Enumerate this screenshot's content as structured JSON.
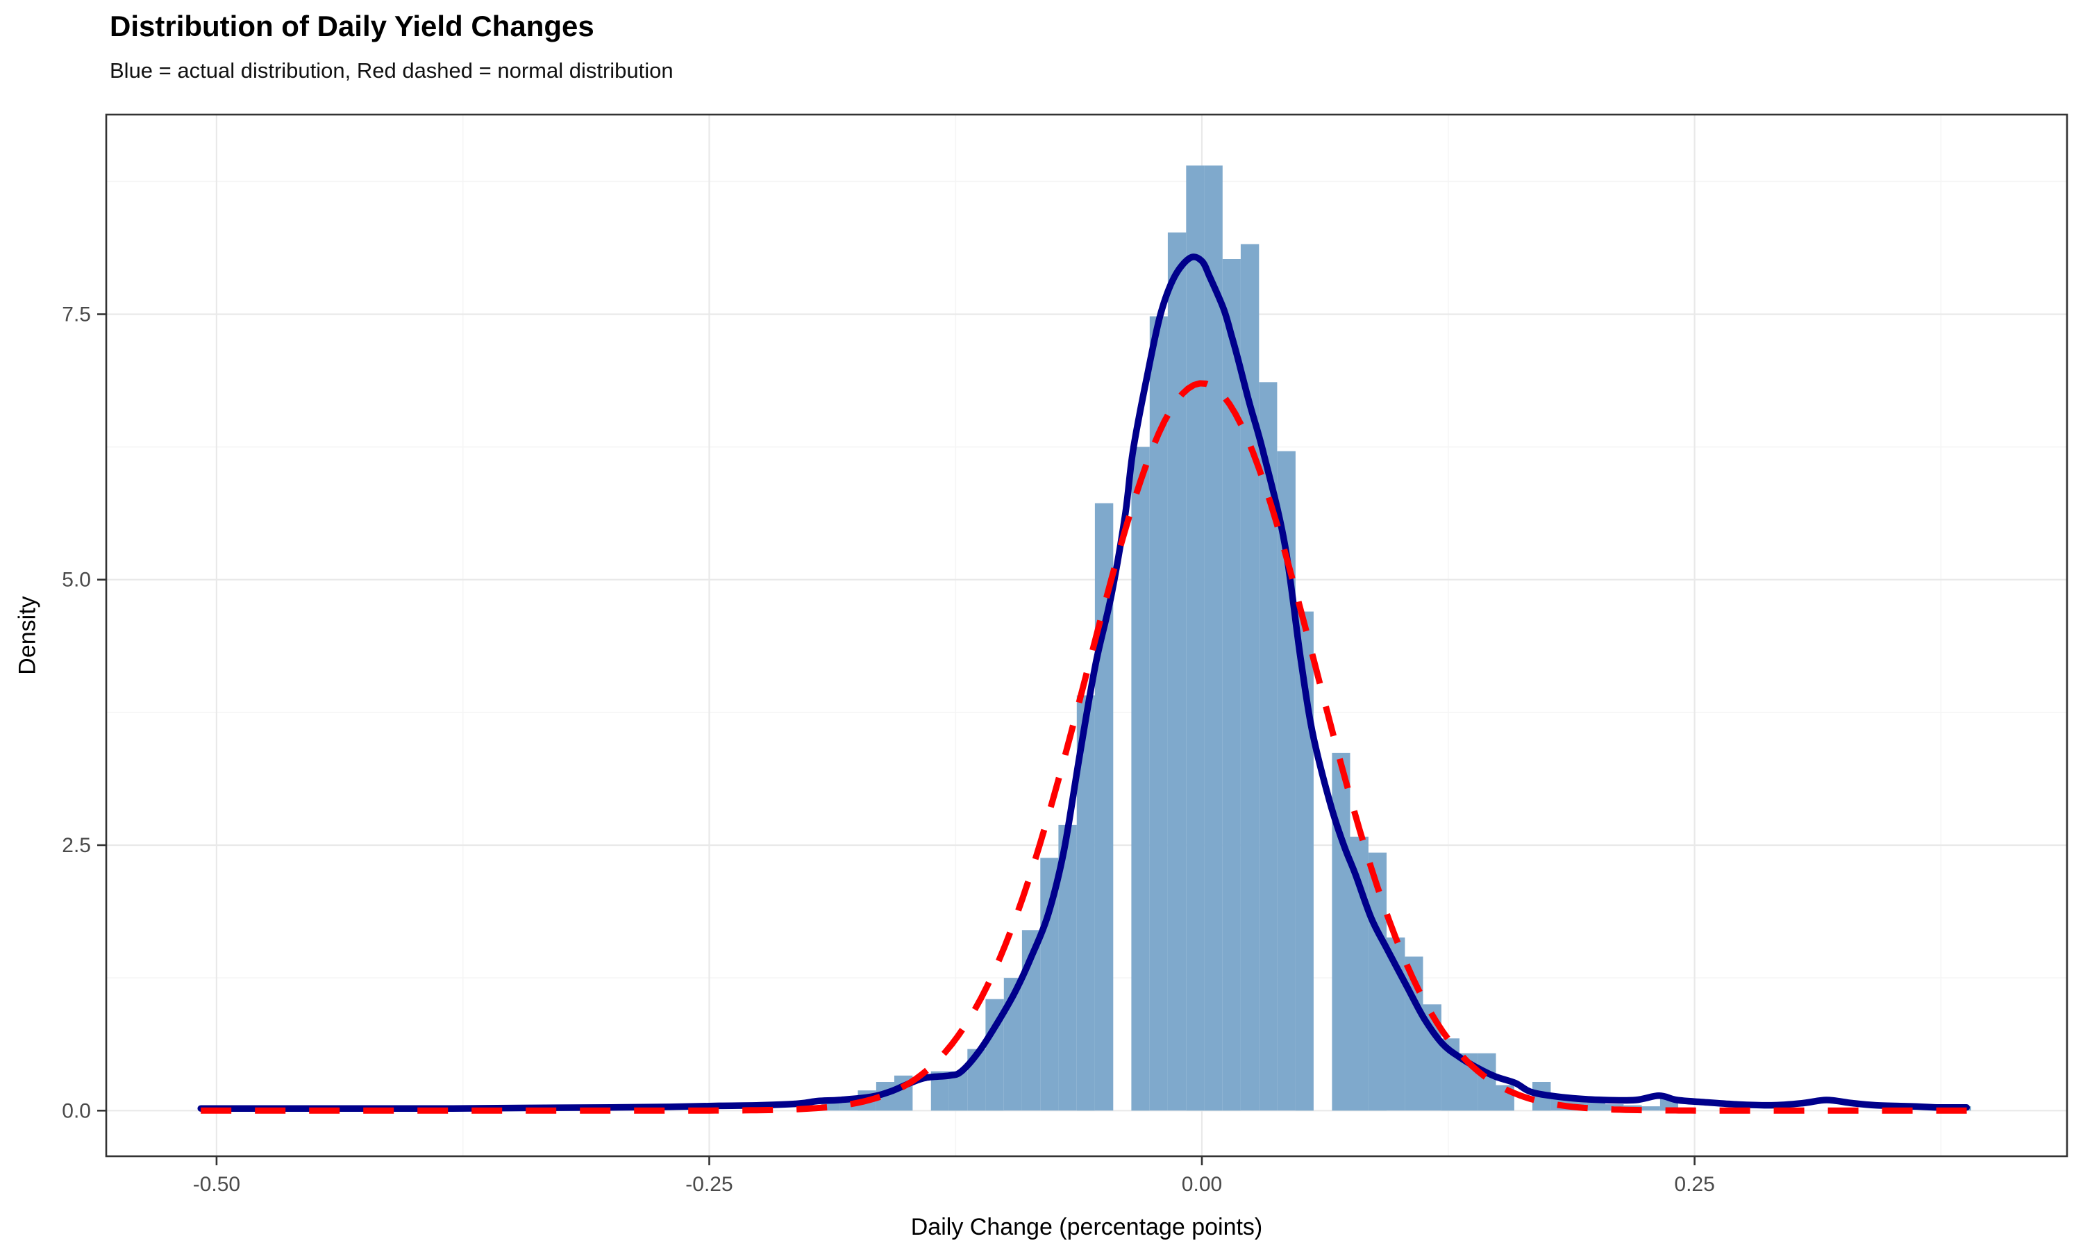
{
  "header": {
    "title": "Distribution of Daily Yield Changes",
    "subtitle": "Blue = actual distribution, Red dashed = normal distribution"
  },
  "chart_data": {
    "type": "bar",
    "subtype": "histogram-with-density-overlays",
    "title": "Distribution of Daily Yield Changes",
    "subtitle": "Blue = actual distribution, Red dashed = normal distribution",
    "xlabel": "Daily Change (percentage points)",
    "ylabel": "Density",
    "series_notes": [
      {
        "name": "actual distribution (kernel density)",
        "style": "solid",
        "color": "#00008B"
      },
      {
        "name": "normal distribution",
        "style": "dashed",
        "color": "#FF0000"
      }
    ],
    "axes": {
      "x_domain": [
        -0.556,
        0.439
      ],
      "y_domain": [
        -0.43,
        9.38
      ],
      "x_ticks": [
        -0.5,
        -0.25,
        0.0,
        0.25
      ],
      "x_tick_labels": [
        "-0.50",
        "-0.25",
        "0.00",
        "0.25"
      ],
      "x_minor_ticks": [
        -0.375,
        -0.125,
        0.125,
        0.375
      ],
      "y_ticks": [
        0.0,
        2.5,
        5.0,
        7.5
      ],
      "y_tick_labels": [
        "0.0",
        "2.5",
        "5.0",
        "7.5"
      ],
      "y_minor_ticks": [
        1.25,
        3.75,
        6.25,
        8.75
      ],
      "grid": true,
      "legend": "none"
    },
    "colors": {
      "bar": "#7FA9CC",
      "density_line": "#00008B",
      "normal_line": "#FF0000",
      "grid_major": "#E9E9E9",
      "grid_minor": "#F5F5F5",
      "panel_border": "#333333",
      "tick_mark": "#333333",
      "tick_text": "#4A4A4A"
    },
    "bars_format": "[x_left, x_right, density_height]",
    "bars": [
      [
        -0.5079,
        -0.4986,
        0.04
      ],
      [
        -0.1931,
        -0.1838,
        0.11
      ],
      [
        -0.1838,
        -0.1746,
        0.11
      ],
      [
        -0.1746,
        -0.1653,
        0.19
      ],
      [
        -0.1653,
        -0.1561,
        0.27
      ],
      [
        -0.1561,
        -0.1468,
        0.33
      ],
      [
        -0.1375,
        -0.1283,
        0.37
      ],
      [
        -0.1283,
        -0.119,
        0.37
      ],
      [
        -0.119,
        -0.1098,
        0.58
      ],
      [
        -0.1098,
        -0.1005,
        1.05
      ],
      [
        -0.1005,
        -0.0913,
        1.25
      ],
      [
        -0.0913,
        -0.082,
        1.7
      ],
      [
        -0.082,
        -0.0728,
        2.38
      ],
      [
        -0.0728,
        -0.0635,
        2.69
      ],
      [
        -0.0635,
        -0.0543,
        3.91
      ],
      [
        -0.0543,
        -0.045,
        5.72
      ],
      [
        -0.0358,
        -0.0265,
        6.25
      ],
      [
        -0.0265,
        -0.0173,
        7.48
      ],
      [
        -0.0173,
        -0.008,
        8.27
      ],
      [
        -0.008,
        0.0012,
        8.9
      ],
      [
        0.0012,
        0.0105,
        8.9
      ],
      [
        0.0105,
        0.0197,
        8.02
      ],
      [
        0.0197,
        0.029,
        8.16
      ],
      [
        0.029,
        0.0382,
        6.86
      ],
      [
        0.0382,
        0.0475,
        6.21
      ],
      [
        0.0475,
        0.0567,
        4.7
      ],
      [
        0.066,
        0.0752,
        3.37
      ],
      [
        0.0752,
        0.0845,
        2.58
      ],
      [
        0.0845,
        0.0937,
        2.43
      ],
      [
        0.0937,
        0.103,
        1.63
      ],
      [
        0.103,
        0.1122,
        1.45
      ],
      [
        0.1122,
        0.1215,
        1.0
      ],
      [
        0.1215,
        0.1307,
        0.68
      ],
      [
        0.1307,
        0.14,
        0.54
      ],
      [
        0.14,
        0.1492,
        0.54
      ],
      [
        0.1492,
        0.1585,
        0.24
      ],
      [
        0.1677,
        0.177,
        0.27
      ],
      [
        0.177,
        0.1862,
        0.12
      ],
      [
        0.1862,
        0.1955,
        0.12
      ],
      [
        0.1955,
        0.2047,
        0.09
      ],
      [
        0.2047,
        0.214,
        0.06
      ],
      [
        0.214,
        0.2232,
        0.05
      ],
      [
        0.2232,
        0.2325,
        0.04
      ],
      [
        0.2325,
        0.2417,
        0.13
      ],
      [
        0.3811,
        0.3903,
        0.04
      ]
    ],
    "density_curve": [
      [
        -0.508,
        0.02
      ],
      [
        -0.46,
        0.02
      ],
      [
        -0.42,
        0.02
      ],
      [
        -0.38,
        0.02
      ],
      [
        -0.34,
        0.025
      ],
      [
        -0.3,
        0.03
      ],
      [
        -0.27,
        0.035
      ],
      [
        -0.245,
        0.045
      ],
      [
        -0.225,
        0.05
      ],
      [
        -0.205,
        0.065
      ],
      [
        -0.195,
        0.09
      ],
      [
        -0.184,
        0.1
      ],
      [
        -0.168,
        0.13
      ],
      [
        -0.158,
        0.18
      ],
      [
        -0.148,
        0.26
      ],
      [
        -0.14,
        0.31
      ],
      [
        -0.128,
        0.33
      ],
      [
        -0.122,
        0.37
      ],
      [
        -0.113,
        0.56
      ],
      [
        -0.104,
        0.82
      ],
      [
        -0.095,
        1.11
      ],
      [
        -0.087,
        1.43
      ],
      [
        -0.078,
        1.85
      ],
      [
        -0.07,
        2.45
      ],
      [
        -0.062,
        3.35
      ],
      [
        -0.054,
        4.2
      ],
      [
        -0.046,
        4.85
      ],
      [
        -0.039,
        5.6
      ],
      [
        -0.035,
        6.21
      ],
      [
        -0.028,
        6.9
      ],
      [
        -0.021,
        7.5
      ],
      [
        -0.014,
        7.85
      ],
      [
        -0.006,
        8.03
      ],
      [
        0.0,
        8.0
      ],
      [
        0.004,
        7.85
      ],
      [
        0.011,
        7.55
      ],
      [
        0.015,
        7.3
      ],
      [
        0.018,
        7.1
      ],
      [
        0.024,
        6.67
      ],
      [
        0.031,
        6.21
      ],
      [
        0.042,
        5.34
      ],
      [
        0.05,
        4.27
      ],
      [
        0.056,
        3.57
      ],
      [
        0.065,
        2.9
      ],
      [
        0.072,
        2.5
      ],
      [
        0.078,
        2.22
      ],
      [
        0.086,
        1.81
      ],
      [
        0.094,
        1.52
      ],
      [
        0.104,
        1.17
      ],
      [
        0.113,
        0.86
      ],
      [
        0.122,
        0.63
      ],
      [
        0.131,
        0.5
      ],
      [
        0.14,
        0.4
      ],
      [
        0.149,
        0.32
      ],
      [
        0.159,
        0.26
      ],
      [
        0.168,
        0.17
      ],
      [
        0.186,
        0.12
      ],
      [
        0.204,
        0.1
      ],
      [
        0.22,
        0.1
      ],
      [
        0.232,
        0.14
      ],
      [
        0.241,
        0.1
      ],
      [
        0.254,
        0.08
      ],
      [
        0.27,
        0.06
      ],
      [
        0.289,
        0.05
      ],
      [
        0.305,
        0.07
      ],
      [
        0.317,
        0.1
      ],
      [
        0.33,
        0.07
      ],
      [
        0.342,
        0.05
      ],
      [
        0.36,
        0.04
      ],
      [
        0.373,
        0.03
      ],
      [
        0.388,
        0.03
      ]
    ],
    "normal_curve": {
      "mean": 0.0,
      "sd": 0.058,
      "peak": 6.85,
      "x_min": -0.508,
      "x_max": 0.39
    }
  },
  "layout_note": "white panel, light gray major/minor grid, dark panel border, no legend box"
}
